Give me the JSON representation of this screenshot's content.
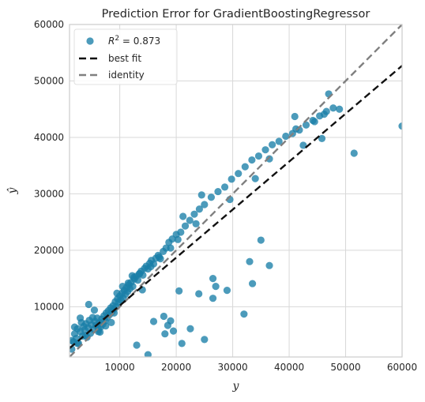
{
  "chart_data": {
    "type": "scatter",
    "title": "Prediction Error for GradientBoostingRegressor",
    "xlabel": "y",
    "ylabel": "ŷ",
    "xlim": [
      1100,
      60000
    ],
    "ylim": [
      1100,
      60000
    ],
    "grid": true,
    "legend_position": "top-left",
    "x_ticks": [
      10000,
      20000,
      30000,
      40000,
      50000,
      60000
    ],
    "y_ticks": [
      10000,
      20000,
      30000,
      40000,
      50000,
      60000
    ],
    "x_tick_labels": [
      "10000",
      "20000",
      "30000",
      "40000",
      "50000",
      "60000"
    ],
    "y_tick_labels": [
      "10000",
      "20000",
      "30000",
      "40000",
      "50000",
      "60000"
    ],
    "legend": {
      "r2_prefix": "R",
      "r2_sup": "2",
      "r2_value": " = 0.873",
      "best_fit": "best fit",
      "identity": "identity"
    },
    "colors": {
      "points": "#1a7fa8",
      "best_fit": "#111111",
      "identity": "#808080",
      "grid": "#d8d8d8",
      "frame": "#cccccc"
    },
    "best_fit_line": {
      "x": [
        1100,
        60000
      ],
      "y": [
        2650,
        52700
      ]
    },
    "identity_line": {
      "x": [
        1100,
        60000
      ],
      "y": [
        1100,
        60000
      ]
    },
    "points": [
      [
        1500,
        2500
      ],
      [
        1800,
        3800
      ],
      [
        2000,
        5200
      ],
      [
        2300,
        4400
      ],
      [
        2500,
        6100
      ],
      [
        2700,
        3500
      ],
      [
        3000,
        5600
      ],
      [
        3200,
        7200
      ],
      [
        3400,
        4800
      ],
      [
        3600,
        6500
      ],
      [
        3800,
        5900
      ],
      [
        4000,
        7000
      ],
      [
        4200,
        4600
      ],
      [
        4400,
        6300
      ],
      [
        4600,
        7600
      ],
      [
        4800,
        5300
      ],
      [
        5000,
        6800
      ],
      [
        5200,
        8100
      ],
      [
        5400,
        6000
      ],
      [
        5600,
        7400
      ],
      [
        5800,
        6700
      ],
      [
        6000,
        8000
      ],
      [
        6200,
        5600
      ],
      [
        6400,
        7100
      ],
      [
        6600,
        6400
      ],
      [
        6800,
        7800
      ],
      [
        7000,
        6900
      ],
      [
        7200,
        8400
      ],
      [
        7400,
        7500
      ],
      [
        7600,
        8900
      ],
      [
        7800,
        8100
      ],
      [
        8000,
        9300
      ],
      [
        8200,
        8600
      ],
      [
        8400,
        9800
      ],
      [
        8600,
        9100
      ],
      [
        8800,
        10200
      ],
      [
        9000,
        9600
      ],
      [
        9200,
        10900
      ],
      [
        9400,
        10000
      ],
      [
        9600,
        11400
      ],
      [
        9800,
        10700
      ],
      [
        10000,
        11900
      ],
      [
        10200,
        11200
      ],
      [
        10400,
        12400
      ],
      [
        10600,
        11600
      ],
      [
        10800,
        12900
      ],
      [
        11000,
        12200
      ],
      [
        11200,
        13400
      ],
      [
        11400,
        12700
      ],
      [
        11600,
        13900
      ],
      [
        11800,
        13200
      ],
      [
        12000,
        14300
      ],
      [
        12300,
        13600
      ],
      [
        12600,
        14900
      ],
      [
        12900,
        15400
      ],
      [
        13200,
        14700
      ],
      [
        13500,
        15900
      ],
      [
        13800,
        16300
      ],
      [
        14100,
        15600
      ],
      [
        14400,
        16800
      ],
      [
        14700,
        17200
      ],
      [
        15000,
        16700
      ],
      [
        15300,
        17700
      ],
      [
        15600,
        18200
      ],
      [
        16000,
        17600
      ],
      [
        16400,
        18600
      ],
      [
        16800,
        19100
      ],
      [
        17200,
        18500
      ],
      [
        17700,
        19800
      ],
      [
        18200,
        20400
      ],
      [
        18700,
        21400
      ],
      [
        19300,
        22000
      ],
      [
        20000,
        22800
      ],
      [
        20800,
        23200
      ],
      [
        21600,
        24300
      ],
      [
        22400,
        25300
      ],
      [
        23200,
        26400
      ],
      [
        24100,
        27300
      ],
      [
        25000,
        28100
      ],
      [
        26200,
        29400
      ],
      [
        27400,
        30400
      ],
      [
        28600,
        31200
      ],
      [
        29800,
        32600
      ],
      [
        31000,
        33600
      ],
      [
        32200,
        34800
      ],
      [
        33400,
        36000
      ],
      [
        34600,
        36700
      ],
      [
        35800,
        37800
      ],
      [
        37000,
        38700
      ],
      [
        38200,
        39300
      ],
      [
        39400,
        40200
      ],
      [
        40600,
        40700
      ],
      [
        41800,
        41300
      ],
      [
        43000,
        42200
      ],
      [
        44200,
        43000
      ],
      [
        45400,
        43800
      ],
      [
        46600,
        44600
      ],
      [
        47800,
        45200
      ],
      [
        48900,
        45000
      ],
      [
        47000,
        47700
      ],
      [
        41000,
        43700
      ],
      [
        42500,
        38600
      ],
      [
        45800,
        39800
      ],
      [
        36500,
        36200
      ],
      [
        34000,
        32700
      ],
      [
        29500,
        29000
      ],
      [
        24500,
        29800
      ],
      [
        21200,
        26000
      ],
      [
        20300,
        21900
      ],
      [
        19000,
        20400
      ],
      [
        60000,
        42000
      ],
      [
        51500,
        37200
      ],
      [
        35000,
        21800
      ],
      [
        36500,
        17300
      ],
      [
        33000,
        18000
      ],
      [
        33500,
        14100
      ],
      [
        32000,
        8700
      ],
      [
        29000,
        12900
      ],
      [
        27000,
        13600
      ],
      [
        26500,
        15000
      ],
      [
        26500,
        11500
      ],
      [
        24000,
        12300
      ],
      [
        22500,
        6100
      ],
      [
        25000,
        4200
      ],
      [
        21000,
        3500
      ],
      [
        20500,
        12800
      ],
      [
        19000,
        7500
      ],
      [
        19500,
        5700
      ],
      [
        18500,
        6700
      ],
      [
        18000,
        5200
      ],
      [
        17800,
        8300
      ],
      [
        16000,
        7400
      ],
      [
        15000,
        1500
      ],
      [
        13000,
        3200
      ],
      [
        14000,
        13000
      ],
      [
        12200,
        15500
      ],
      [
        11500,
        14200
      ],
      [
        9000,
        8900
      ],
      [
        8500,
        7200
      ],
      [
        7500,
        6600
      ],
      [
        5500,
        9400
      ],
      [
        4500,
        10400
      ],
      [
        3000,
        8000
      ],
      [
        2500,
        3500
      ],
      [
        2000,
        6400
      ],
      [
        1500,
        4000
      ],
      [
        6500,
        5500
      ],
      [
        7000,
        7300
      ],
      [
        9500,
        12400
      ],
      [
        10500,
        13600
      ],
      [
        12500,
        15200
      ],
      [
        13500,
        15800
      ],
      [
        15500,
        17100
      ],
      [
        17000,
        18800
      ],
      [
        23500,
        24700
      ],
      [
        41200,
        41500
      ],
      [
        44500,
        42800
      ],
      [
        46200,
        44100
      ],
      [
        4000,
        4900
      ],
      [
        6200,
        6000
      ]
    ]
  }
}
